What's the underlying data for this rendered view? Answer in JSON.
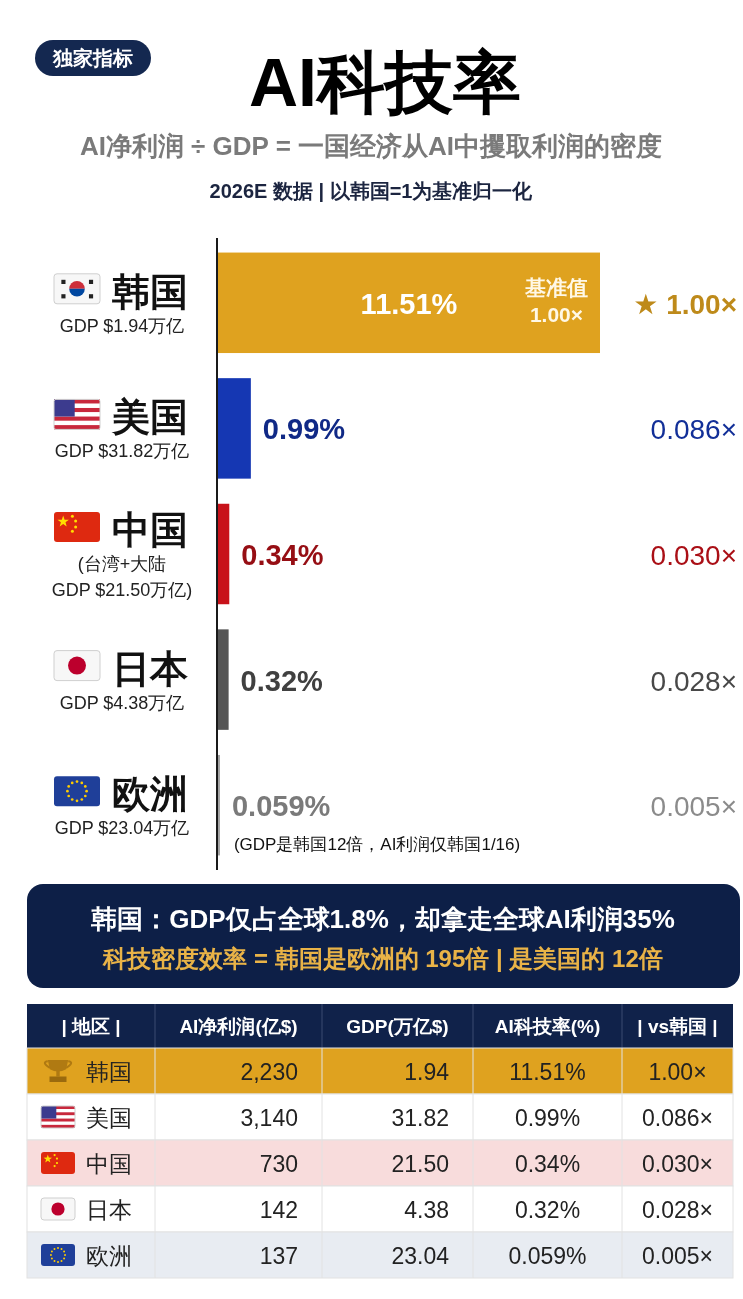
{
  "chart_data": [
    {
      "type": "bar",
      "orientation": "horizontal",
      "title": "AI科技率",
      "subtitle": "AI净利润 ÷ GDP = 一国经济从AI中攫取利润的密度\n2026E 数据 | 以韩国=1为基准归一化",
      "categories": [
        "韩国\nGDP $1.94万亿",
        "美国\nGDP $31.82万亿",
        "中国\n(台湾+大陆\nGDP $21.50万亿)",
        "日本\nGDP $4.38万亿",
        "欧洲\nGDP $23.04万亿"
      ],
      "values": [
        11.51,
        0.99,
        0.34,
        0.32,
        0.059
      ],
      "colors": [
        "#dfa21f",
        "#1537b3",
        "#c8121a",
        "#555555",
        "#a3a3a3"
      ],
      "value_labels": [
        "11.51%",
        "0.99%",
        "0.34%",
        "0.32%",
        "0.059%"
      ],
      "annotations": [
        "独家指标",
        "★ 1.00×",
        "0.086×",
        "0.030×",
        "0.028×",
        "0.005×",
        {
          "text": "基准值\n1.00×",
          "x": 11.51,
          "y": "韩国\nGDP $1.94万亿"
        },
        {
          "text": "(GDP是韩国12倍，AI利润仅韩国1/16)",
          "x": 0.059,
          "y": "欧洲\nGDP $23.04万亿"
        }
      ]
    },
    {
      "type": "other",
      "title": "韩国：GDP仅占全球1.8%，却拿走全球AI利润35%",
      "subtitle": "科技密度效率 = 韩国是欧洲的 195倍 | 是美国的 12倍"
    },
    {
      "type": "other",
      "categories": [
        "| 地区 |",
        "AI净利润(亿$)",
        "GDP(万亿$)",
        "AI科技率(%)",
        "| vs韩国 |"
      ],
      "y_categories": [
        "韩国",
        "美国",
        "中国",
        "日本",
        "欧洲"
      ],
      "cell_labels": [
        [
          "2,230",
          "1.94",
          "11.51%",
          "1.00×"
        ],
        [
          "3,140",
          "31.82",
          "0.99%",
          "0.086×"
        ],
        [
          "730",
          "21.50",
          "0.34%",
          "0.030×"
        ],
        [
          "142",
          "4.38",
          "0.32%",
          "0.028×"
        ],
        [
          "137",
          "23.04",
          "0.059%",
          "0.005×"
        ]
      ]
    }
  ]
}
